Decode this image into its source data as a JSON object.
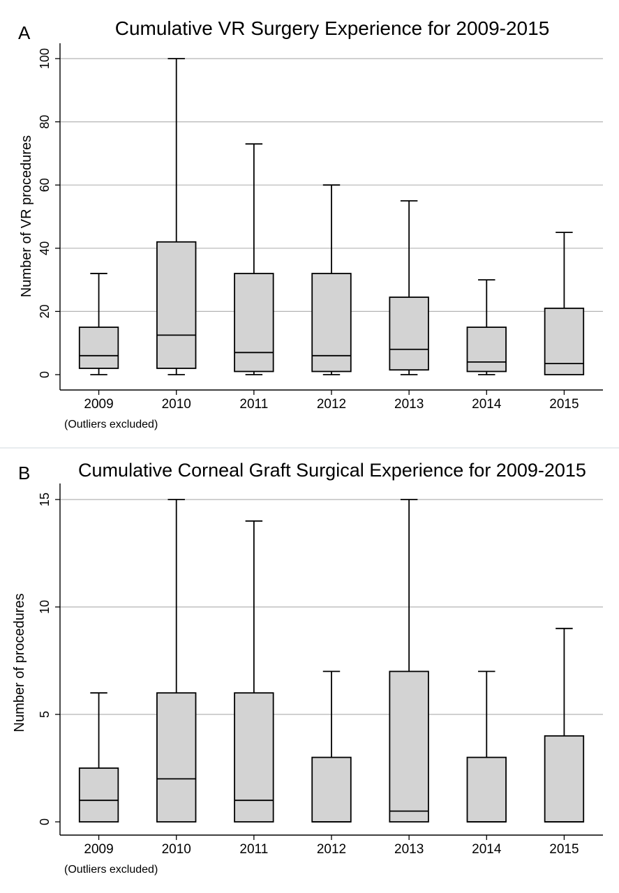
{
  "chart_data": [
    {
      "type": "box",
      "panel_label": "A",
      "title": "Cumulative VR Surgery Experience for 2009-2015",
      "ylabel": "Number of VR procedures",
      "note": "(Outliers excluded)",
      "ylim": [
        0,
        100
      ],
      "yticks": [
        0,
        20,
        40,
        60,
        80,
        100
      ],
      "grid": true,
      "categories": [
        "2009",
        "2010",
        "2011",
        "2012",
        "2013",
        "2014",
        "2015"
      ],
      "boxes": [
        {
          "min": 0,
          "q1": 2,
          "median": 6,
          "q3": 15,
          "max": 32
        },
        {
          "min": 0,
          "q1": 2,
          "median": 12.5,
          "q3": 42,
          "max": 100
        },
        {
          "min": 0,
          "q1": 1,
          "median": 7,
          "q3": 32,
          "max": 73
        },
        {
          "min": 0,
          "q1": 1,
          "median": 6,
          "q3": 32,
          "max": 60
        },
        {
          "min": 0,
          "q1": 1.5,
          "median": 8,
          "q3": 24.5,
          "max": 55
        },
        {
          "min": 0,
          "q1": 1,
          "median": 4,
          "q3": 15,
          "max": 30
        },
        {
          "min": 0,
          "q1": 0,
          "median": 3.5,
          "q3": 21,
          "max": 45
        }
      ]
    },
    {
      "type": "box",
      "panel_label": "B",
      "title": "Cumulative Corneal Graft Surgical Experience for 2009-2015",
      "ylabel": "Number of procedures",
      "note": "(Outliers excluded)",
      "ylim": [
        0,
        15
      ],
      "yticks": [
        0,
        5,
        10,
        15
      ],
      "grid": true,
      "categories": [
        "2009",
        "2010",
        "2011",
        "2012",
        "2013",
        "2014",
        "2015"
      ],
      "boxes": [
        {
          "min": 0,
          "q1": 0,
          "median": 1,
          "q3": 2.5,
          "max": 6
        },
        {
          "min": 0,
          "q1": 0,
          "median": 2,
          "q3": 6,
          "max": 15
        },
        {
          "min": 0,
          "q1": 0,
          "median": 1,
          "q3": 6,
          "max": 14
        },
        {
          "min": 0,
          "q1": 0,
          "median": 0,
          "q3": 3,
          "max": 7
        },
        {
          "min": 0,
          "q1": 0,
          "median": 0.5,
          "q3": 7,
          "max": 15
        },
        {
          "min": 0,
          "q1": 0,
          "median": 0,
          "q3": 3,
          "max": 7
        },
        {
          "min": 0,
          "q1": 0,
          "median": 0,
          "q3": 4,
          "max": 9
        }
      ]
    }
  ],
  "colors": {
    "box_fill": "#d3d3d3",
    "stroke": "#000000",
    "grid": "#b4b4b4"
  }
}
